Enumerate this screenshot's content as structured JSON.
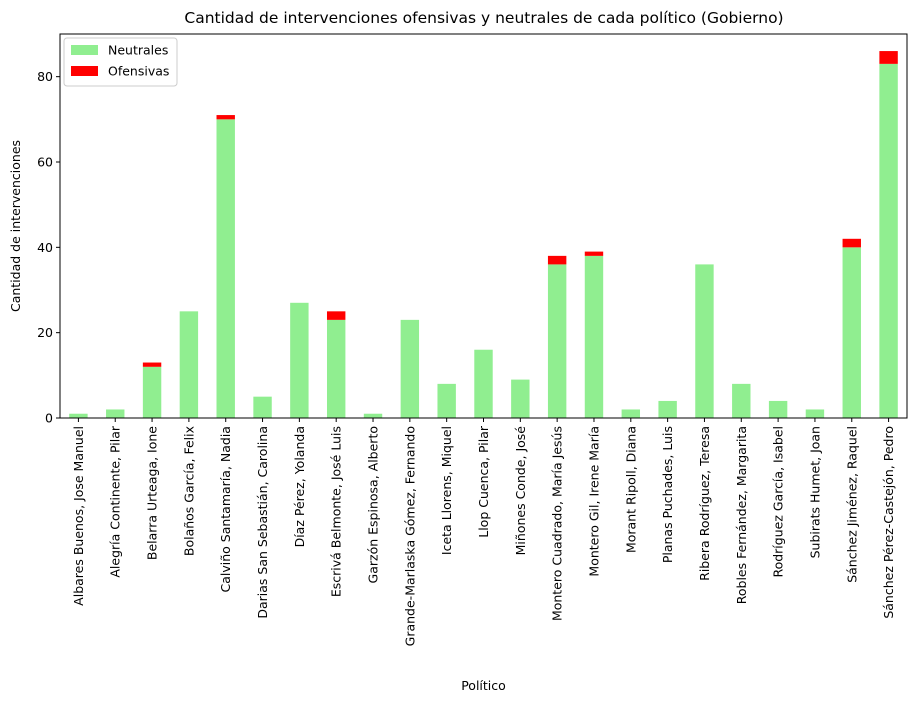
{
  "chart_data": {
    "type": "bar",
    "stacked": true,
    "title": "Cantidad de intervenciones ofensivas y neutrales de cada político (Gobierno)",
    "xlabel": "Político",
    "ylabel": "Cantidad de intervenciones",
    "ylim": [
      0,
      90
    ],
    "yticks": [
      0,
      20,
      40,
      60,
      80
    ],
    "grid": false,
    "legend_position": "top-left",
    "categories": [
      "Albares Buenos, Jose Manuel",
      "Alegría Continente, Pilar",
      "Belarra Urteaga, Ione",
      "Bolaños García, Felix",
      "Calviño Santamaría, Nadia",
      "Darias San Sebastián, Carolina",
      "Díaz Pérez, Yolanda",
      "Escrivá Belmonte, José Luis",
      "Garzón Espinosa, Alberto",
      "Grande-Marlaska Gómez, Fernando",
      "Iceta Llorens, Miquel",
      "Llop Cuenca, Pilar",
      "Miñones Conde, José",
      "Montero Cuadrado, María Jesús",
      "Montero Gil, Irene María",
      "Morant Ripoll, Diana",
      "Planas Puchades, Luis",
      "Ribera Rodríguez, Teresa",
      "Robles Fernández, Margarita",
      "Rodríguez García, Isabel",
      "Subirats Humet, Joan",
      "Sánchez Jiménez, Raquel",
      "Sánchez Pérez-Castejón, Pedro"
    ],
    "series": [
      {
        "name": "Neutrales",
        "color": "#90ee90",
        "values": [
          1,
          2,
          12,
          25,
          70,
          5,
          27,
          23,
          1,
          23,
          8,
          16,
          9,
          36,
          38,
          2,
          4,
          36,
          8,
          4,
          2,
          40,
          83
        ]
      },
      {
        "name": "Ofensivas",
        "color": "#ff0000",
        "values": [
          0,
          0,
          1,
          0,
          1,
          0,
          0,
          2,
          0,
          0,
          0,
          0,
          0,
          2,
          1,
          0,
          0,
          0,
          0,
          0,
          0,
          2,
          3
        ]
      }
    ]
  }
}
